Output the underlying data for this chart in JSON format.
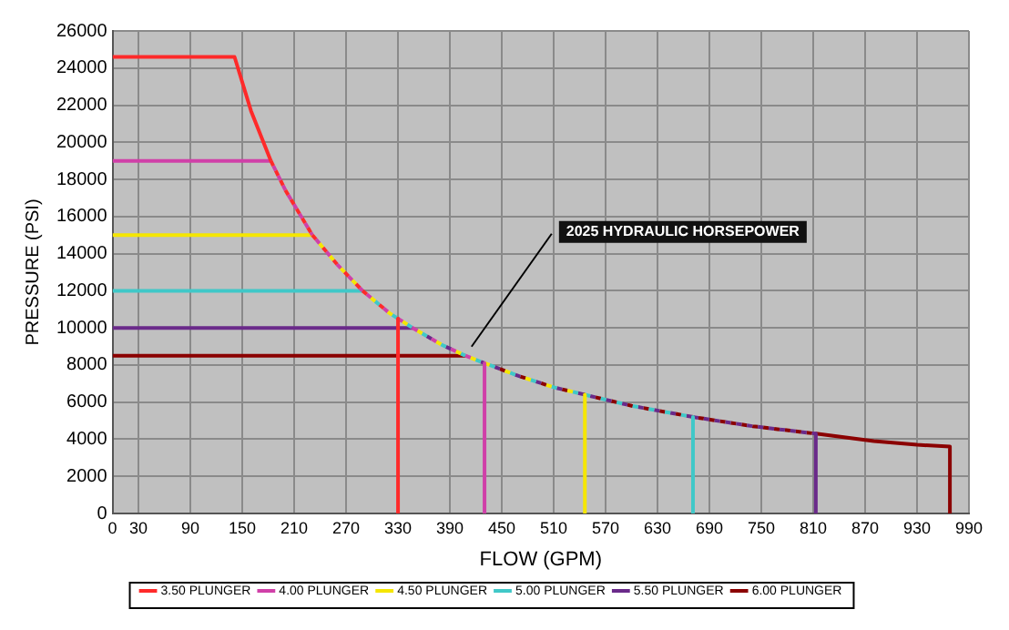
{
  "chart_data": {
    "type": "line",
    "xlabel": "FLOW (GPM)",
    "ylabel": "PRESSURE (PSI)",
    "xlim": [
      0,
      990
    ],
    "xticks": [
      0,
      30,
      90,
      150,
      210,
      270,
      330,
      390,
      450,
      510,
      570,
      630,
      690,
      750,
      810,
      870,
      930,
      990
    ],
    "ylim": [
      0,
      26000
    ],
    "yticks": [
      0,
      2000,
      4000,
      6000,
      8000,
      10000,
      12000,
      14000,
      16000,
      18000,
      20000,
      22000,
      24000,
      26000
    ],
    "grid": true,
    "legend": "bottom",
    "marker": "none",
    "line_style": "solid",
    "annotations": [
      {
        "text": "2025 HYDRAULIC HORSEPOWER",
        "x": 415,
        "y": 8400
      }
    ],
    "series": [
      {
        "name": "3.50 PLUNGER",
        "color": "#ff2a2a",
        "x": [
          0,
          141,
          160,
          183,
          200,
          231,
          260,
          289,
          320,
          330,
          330
        ],
        "values": [
          24600,
          24600,
          21700,
          19000,
          17400,
          15000,
          13400,
          12000,
          10800,
          10500,
          0
        ]
      },
      {
        "name": "4.00 PLUNGER",
        "color": "#d040a8",
        "x": [
          0,
          183,
          200,
          231,
          260,
          289,
          320,
          330,
          347,
          380,
          408,
          430,
          430
        ],
        "values": [
          19000,
          19000,
          17400,
          15000,
          13400,
          12000,
          10800,
          10500,
          10000,
          9100,
          8500,
          8100,
          0
        ]
      },
      {
        "name": "4.50 PLUNGER",
        "color": "#f5e600",
        "x": [
          0,
          231,
          260,
          289,
          320,
          330,
          347,
          380,
          408,
          430,
          470,
          510,
          546,
          546
        ],
        "values": [
          15000,
          15000,
          13400,
          12000,
          10800,
          10500,
          10000,
          9100,
          8500,
          8100,
          7400,
          6800,
          6400,
          0
        ]
      },
      {
        "name": "5.00 PLUNGER",
        "color": "#40c8c8",
        "x": [
          0,
          289,
          320,
          330,
          347,
          380,
          408,
          430,
          470,
          510,
          546,
          600,
          671,
          671
        ],
        "values": [
          12000,
          12000,
          10800,
          10500,
          10000,
          9100,
          8500,
          8100,
          7400,
          6800,
          6400,
          5800,
          5200,
          0
        ]
      },
      {
        "name": "5.50 PLUNGER",
        "color": "#6a2a8a",
        "x": [
          0,
          347,
          380,
          408,
          430,
          470,
          510,
          546,
          600,
          671,
          740,
          813,
          813
        ],
        "values": [
          10000,
          10000,
          9100,
          8500,
          8100,
          7400,
          6800,
          6400,
          5800,
          5200,
          4700,
          4300,
          0
        ]
      },
      {
        "name": "6.00 PLUNGER",
        "color": "#8b0000",
        "x": [
          0,
          408,
          430,
          470,
          510,
          546,
          600,
          671,
          740,
          813,
          880,
          930,
          968,
          968
        ],
        "values": [
          8500,
          8500,
          8100,
          7400,
          6800,
          6400,
          5800,
          5200,
          4700,
          4300,
          3900,
          3700,
          3600,
          0
        ]
      }
    ]
  }
}
